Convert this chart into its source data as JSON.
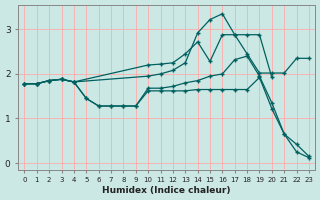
{
  "xlabel": "Humidex (Indice chaleur)",
  "bg_color": "#cce8e4",
  "grid_color": "#ffaaaa",
  "line_color": "#006060",
  "xlim": [
    -0.5,
    23.5
  ],
  "ylim": [
    -0.15,
    3.55
  ],
  "xticks": [
    0,
    1,
    2,
    3,
    4,
    5,
    6,
    7,
    8,
    9,
    10,
    11,
    12,
    13,
    14,
    15,
    16,
    17,
    18,
    19,
    20,
    21,
    22,
    23
  ],
  "yticks": [
    0,
    1,
    2,
    3
  ],
  "lines": [
    {
      "x": [
        0,
        1,
        2,
        3,
        4,
        5,
        6,
        7,
        8,
        9,
        10,
        11,
        12,
        13,
        14,
        15,
        16,
        17,
        18,
        19,
        20,
        21,
        22,
        23
      ],
      "y": [
        1.78,
        1.78,
        1.85,
        1.88,
        1.82,
        1.45,
        1.28,
        1.28,
        1.28,
        1.28,
        1.68,
        1.68,
        1.72,
        1.8,
        1.85,
        1.95,
        2.0,
        2.32,
        2.4,
        1.95,
        1.35,
        0.65,
        0.25,
        0.12
      ]
    },
    {
      "x": [
        0,
        1,
        2,
        3,
        4,
        10,
        11,
        12,
        13,
        14,
        15,
        16,
        17,
        18,
        19,
        20
      ],
      "y": [
        1.78,
        1.78,
        1.85,
        1.88,
        1.82,
        1.95,
        2.0,
        2.08,
        2.25,
        2.92,
        3.22,
        3.35,
        2.88,
        2.88,
        2.88,
        1.92
      ]
    },
    {
      "x": [
        0,
        1,
        2,
        3,
        4,
        10,
        11,
        12,
        13,
        14,
        15,
        16,
        17,
        18,
        19,
        20,
        21,
        22,
        23
      ],
      "y": [
        1.78,
        1.78,
        1.85,
        1.88,
        1.82,
        2.2,
        2.22,
        2.25,
        2.45,
        2.72,
        2.28,
        2.88,
        2.88,
        2.45,
        2.02,
        2.02,
        2.02,
        2.35,
        2.35
      ]
    },
    {
      "x": [
        0,
        1,
        2,
        3,
        4,
        5,
        6,
        7,
        8,
        9,
        10,
        11,
        12,
        13,
        14,
        15,
        16,
        17,
        18,
        19,
        20,
        21,
        22,
        23
      ],
      "y": [
        1.78,
        1.78,
        1.85,
        1.88,
        1.82,
        1.45,
        1.28,
        1.28,
        1.28,
        1.28,
        1.62,
        1.62,
        1.62,
        1.62,
        1.65,
        1.65,
        1.65,
        1.65,
        1.65,
        1.92,
        1.22,
        0.65,
        0.42,
        0.15
      ]
    }
  ]
}
